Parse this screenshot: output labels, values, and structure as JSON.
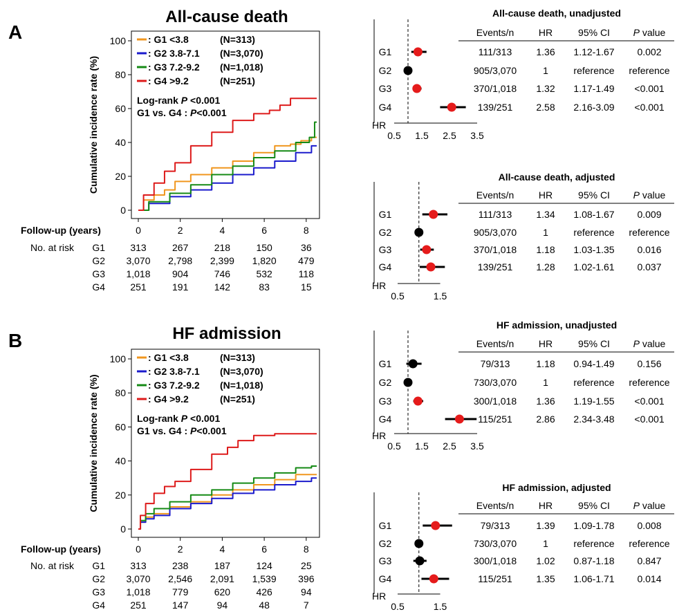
{
  "chart_data": [
    {
      "type": "line",
      "panel": "A",
      "title": "All-cause death",
      "xlabel": "Follow-up (years)",
      "ylabel": "Cumulative incidence  rate (%)",
      "xlim": [
        0,
        8.5
      ],
      "ylim": [
        0,
        100
      ],
      "xticks": [
        0,
        2,
        4,
        6,
        8
      ],
      "yticks": [
        0,
        20,
        40,
        60,
        80,
        100
      ],
      "legend": [
        "G1 <3.8",
        "G2 3.8-7.1",
        "G3 7.2-9.2",
        "G4 >9.2"
      ],
      "legend_n": [
        "(N=313)",
        "(N=3,070)",
        "(N=1,018)",
        "(N=251)"
      ],
      "legend_position": "top-left",
      "stats": [
        "Log-rank ",
        "P",
        " <0.001",
        "G1 vs. G4 : ",
        "P",
        "<0.001"
      ],
      "series": [
        {
          "name": "G1 <3.8",
          "color": "#f0961e",
          "x": [
            0,
            0.5,
            1,
            1.5,
            2,
            3,
            4,
            5,
            6,
            7,
            7.5,
            8,
            8.5
          ],
          "y": [
            0,
            6,
            9,
            12,
            17,
            21,
            25,
            29,
            34,
            38,
            39,
            41,
            43
          ]
        },
        {
          "name": "G2 3.8-7.1",
          "color": "#1a1acc",
          "x": [
            0,
            1,
            2,
            3,
            4,
            5,
            6,
            7,
            8,
            8.5
          ],
          "y": [
            0,
            4,
            8,
            12,
            16,
            21,
            25,
            29,
            34,
            38
          ]
        },
        {
          "name": "G3 7.2-9.2",
          "color": "#158a15",
          "x": [
            0,
            1,
            2,
            3,
            4,
            5,
            6,
            7,
            8,
            8.3,
            8.5
          ],
          "y": [
            0,
            5,
            10,
            15,
            21,
            26,
            31,
            35,
            40,
            43,
            52
          ]
        },
        {
          "name": "G4 >9.2",
          "color": "#dd1a1a",
          "x": [
            0,
            0.5,
            1,
            1.5,
            2,
            3,
            4,
            5,
            6,
            6.5,
            7,
            7.5,
            8,
            8.5
          ],
          "y": [
            0,
            9,
            16,
            23,
            28,
            38,
            46,
            53,
            57,
            59,
            62,
            66,
            66,
            66
          ]
        }
      ],
      "risk_table": {
        "label": "No. at risk",
        "columns": [
          0,
          2,
          4,
          6,
          8
        ],
        "rows": [
          {
            "group": "G1",
            "values": [
              "313",
              "267",
              "218",
              "150",
              "36"
            ]
          },
          {
            "group": "G2",
            "values": [
              "3,070",
              "2,798",
              "2,399",
              "1,820",
              "479"
            ]
          },
          {
            "group": "G3",
            "values": [
              "1,018",
              "904",
              "746",
              "532",
              "118"
            ]
          },
          {
            "group": "G4",
            "values": [
              "251",
              "191",
              "142",
              "83",
              "15"
            ]
          }
        ]
      }
    },
    {
      "type": "line",
      "panel": "B",
      "title": "HF admission",
      "xlabel": "Follow-up (years)",
      "ylabel": "Cumulative incidence  rate (%)",
      "xlim": [
        0,
        8.5
      ],
      "ylim": [
        0,
        100
      ],
      "xticks": [
        0,
        2,
        4,
        6,
        8
      ],
      "yticks": [
        0,
        20,
        40,
        60,
        80,
        100
      ],
      "legend": [
        "G1 <3.8",
        "G2 3.8-7.1",
        "G3 7.2-9.2",
        "G4 >9.2"
      ],
      "legend_n": [
        "(N=313)",
        "(N=3,070)",
        "(N=1,018)",
        "(N=251)"
      ],
      "legend_position": "top-left",
      "stats": [
        "Log-rank ",
        "P",
        " <0.001",
        "G1 vs. G4 : ",
        "P",
        "<0.001"
      ],
      "series": [
        {
          "name": "G1 <3.8",
          "color": "#f0961e",
          "x": [
            0,
            0.2,
            0.5,
            1,
            2,
            3,
            4,
            5,
            6,
            7,
            8,
            8.5
          ],
          "y": [
            0,
            4,
            7,
            9,
            13,
            16,
            20,
            23,
            26,
            29,
            32,
            32
          ]
        },
        {
          "name": "G2 3.8-7.1",
          "color": "#1a1acc",
          "x": [
            0,
            0.2,
            0.5,
            1,
            2,
            3,
            4,
            5,
            6,
            7,
            8,
            8.5
          ],
          "y": [
            0,
            4,
            6,
            8,
            12,
            15,
            18,
            21,
            23,
            26,
            28,
            30
          ]
        },
        {
          "name": "G3 7.2-9.2",
          "color": "#158a15",
          "x": [
            0,
            0.2,
            0.5,
            1,
            2,
            3,
            4,
            5,
            6,
            7,
            8,
            8.5
          ],
          "y": [
            0,
            5,
            9,
            12,
            16,
            20,
            23,
            27,
            30,
            33,
            36,
            37
          ]
        },
        {
          "name": "G4 >9.2",
          "color": "#dd1a1a",
          "x": [
            0,
            0.2,
            0.5,
            1,
            1.5,
            2,
            3,
            4,
            4.5,
            5,
            6,
            7,
            8,
            8.5
          ],
          "y": [
            0,
            8,
            15,
            21,
            25,
            28,
            35,
            44,
            48,
            52,
            55,
            56,
            56,
            56
          ]
        }
      ],
      "risk_table": {
        "label": "No. at risk",
        "columns": [
          0,
          2,
          4,
          6,
          8
        ],
        "rows": [
          {
            "group": "G1",
            "values": [
              "313",
              "238",
              "187",
              "124",
              "25"
            ]
          },
          {
            "group": "G2",
            "values": [
              "3,070",
              "2,546",
              "2,091",
              "1,539",
              "396"
            ]
          },
          {
            "group": "G3",
            "values": [
              "1,018",
              "779",
              "620",
              "426",
              "94"
            ]
          },
          {
            "group": "G4",
            "values": [
              "251",
              "147",
              "94",
              "48",
              "7"
            ]
          }
        ]
      }
    },
    {
      "type": "forest",
      "title": "All-cause death, unadjusted",
      "axis_label": "HR",
      "xlim": [
        0.5,
        3.5
      ],
      "ticks": [
        0.5,
        1.5,
        2.5,
        3.5
      ],
      "tick_labels": [
        "0.5",
        "1.5",
        "2.5",
        "3.5"
      ],
      "reference_line": 1,
      "header": [
        "Events/n",
        "HR",
        "95% CI",
        "P value"
      ],
      "rows": [
        {
          "group": "G1",
          "events": "111/313",
          "hr": "1.36",
          "ci": "1.12-1.67",
          "p": "0.002",
          "hr_value": 1.36,
          "lo": 1.12,
          "hi": 1.67,
          "color": "#e51b1b"
        },
        {
          "group": "G2",
          "events": "905/3,070",
          "hr": "1",
          "ci": "reference",
          "p": "reference",
          "hr_value": 1,
          "lo": 1,
          "hi": 1,
          "color": "#000000"
        },
        {
          "group": "G3",
          "events": "370/1,018",
          "hr": "1.32",
          "ci": "1.17-1.49",
          "p": "<0.001",
          "hr_value": 1.32,
          "lo": 1.17,
          "hi": 1.49,
          "color": "#e51b1b"
        },
        {
          "group": "G4",
          "events": "139/251",
          "hr": "2.58",
          "ci": "2.16-3.09",
          "p": "<0.001",
          "hr_value": 2.58,
          "lo": 2.16,
          "hi": 3.09,
          "color": "#e51b1b"
        }
      ]
    },
    {
      "type": "forest",
      "title": "All-cause death, adjusted",
      "axis_label": "HR",
      "xlim": [
        0.5,
        1.8
      ],
      "ticks": [
        0.5,
        1.5
      ],
      "tick_labels": [
        "0.5",
        "1.5"
      ],
      "reference_line": 1,
      "header": [
        "Events/n",
        "HR",
        "95% CI",
        "P value"
      ],
      "rows": [
        {
          "group": "G1",
          "events": "111/313",
          "hr": "1.34",
          "ci": "1.08-1.67",
          "p": "0.009",
          "hr_value": 1.34,
          "lo": 1.08,
          "hi": 1.67,
          "color": "#e51b1b"
        },
        {
          "group": "G2",
          "events": "905/3,070",
          "hr": "1",
          "ci": "reference",
          "p": "reference",
          "hr_value": 1,
          "lo": 1,
          "hi": 1,
          "color": "#000000"
        },
        {
          "group": "G3",
          "events": "370/1,018",
          "hr": "1.18",
          "ci": "1.03-1.35",
          "p": "0.016",
          "hr_value": 1.18,
          "lo": 1.03,
          "hi": 1.35,
          "color": "#e51b1b"
        },
        {
          "group": "G4",
          "events": "139/251",
          "hr": "1.28",
          "ci": "1.02-1.61",
          "p": "0.037",
          "hr_value": 1.28,
          "lo": 1.02,
          "hi": 1.61,
          "color": "#e51b1b"
        }
      ]
    },
    {
      "type": "forest",
      "title": "HF admission, unadjusted",
      "axis_label": "HR",
      "xlim": [
        0.5,
        3.5
      ],
      "ticks": [
        0.5,
        1.5,
        2.5,
        3.5
      ],
      "tick_labels": [
        "0.5",
        "1.5",
        "2.5",
        "3.5"
      ],
      "reference_line": 1,
      "header": [
        "Events/n",
        "HR",
        "95% CI",
        "P value"
      ],
      "rows": [
        {
          "group": "G1",
          "events": "79/313",
          "hr": "1.18",
          "ci": "0.94-1.49",
          "p": "0.156",
          "hr_value": 1.18,
          "lo": 0.94,
          "hi": 1.49,
          "color": "#000000"
        },
        {
          "group": "G2",
          "events": "730/3,070",
          "hr": "1",
          "ci": "reference",
          "p": "reference",
          "hr_value": 1,
          "lo": 1,
          "hi": 1,
          "color": "#000000"
        },
        {
          "group": "G3",
          "events": "300/1,018",
          "hr": "1.36",
          "ci": "1.19-1.55",
          "p": "<0.001",
          "hr_value": 1.36,
          "lo": 1.19,
          "hi": 1.55,
          "color": "#e51b1b"
        },
        {
          "group": "G4",
          "events": "115/251",
          "hr": "2.86",
          "ci": "2.34-3.48",
          "p": "<0.001",
          "hr_value": 2.86,
          "lo": 2.34,
          "hi": 3.48,
          "color": "#e51b1b"
        }
      ]
    },
    {
      "type": "forest",
      "title": "HF admission, adjusted",
      "axis_label": "HR",
      "xlim": [
        0.5,
        1.8
      ],
      "ticks": [
        0.5,
        1.5
      ],
      "tick_labels": [
        "0.5",
        "1.5"
      ],
      "reference_line": 1,
      "header": [
        "Events/n",
        "HR",
        "95% CI",
        "P value"
      ],
      "rows": [
        {
          "group": "G1",
          "events": "79/313",
          "hr": "1.39",
          "ci": "1.09-1.78",
          "p": "0.008",
          "hr_value": 1.39,
          "lo": 1.09,
          "hi": 1.78,
          "color": "#e51b1b"
        },
        {
          "group": "G2",
          "events": "730/3,070",
          "hr": "1",
          "ci": "reference",
          "p": "reference",
          "hr_value": 1,
          "lo": 1,
          "hi": 1,
          "color": "#000000"
        },
        {
          "group": "G3",
          "events": "300/1,018",
          "hr": "1.02",
          "ci": "0.87-1.18",
          "p": "0.847",
          "hr_value": 1.02,
          "lo": 0.87,
          "hi": 1.18,
          "color": "#000000"
        },
        {
          "group": "G4",
          "events": "115/251",
          "hr": "1.35",
          "ci": "1.06-1.71",
          "p": "0.014",
          "hr_value": 1.35,
          "lo": 1.06,
          "hi": 1.71,
          "color": "#e51b1b"
        }
      ]
    }
  ]
}
